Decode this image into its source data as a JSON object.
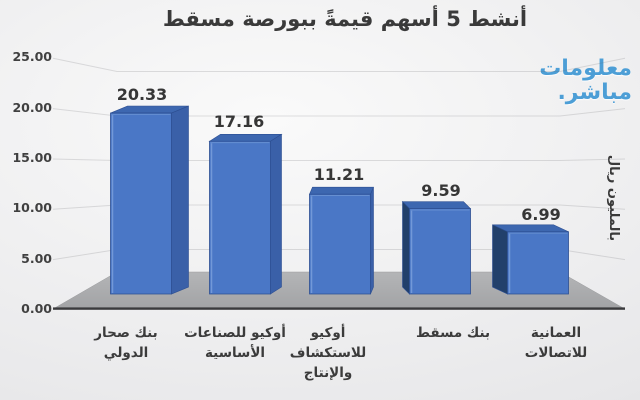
{
  "title": "أنشط 5 أسهم قيمةً ببورصة مسقط",
  "watermark": {
    "line1": "معلومات",
    "line2": "مباشر.",
    "color": "#4c9ed6"
  },
  "right_axis_title": "بالمليون ريال",
  "chart_data": {
    "type": "bar",
    "style": "3d-perspective",
    "title": "أنشط 5 أسهم قيمةً ببورصة مسقط",
    "unit_label": "بالمليون ريال",
    "categories": [
      "بنك صحار الدولي",
      "أوكيو للصناعات الأساسية",
      "أوكيو للاستكشاف والإنتاج",
      "بنك مسقط",
      "العمانية للاتصالات"
    ],
    "categories_lines": [
      [
        "بنك صحار",
        "الدولي"
      ],
      [
        "أوكيو للصناعات",
        "الأساسية"
      ],
      [
        "أوكيو",
        "للاستكشاف",
        "والإنتاج"
      ],
      [
        "بنك مسقط"
      ],
      [
        "العمانية",
        "للاتصالات"
      ]
    ],
    "values": [
      20.33,
      17.16,
      11.21,
      9.59,
      6.99
    ],
    "value_labels": [
      "20.33",
      "17.16",
      "11.21",
      "9.59",
      "6.99"
    ],
    "y_ticks": [
      "25.00",
      "20.00",
      "15.00",
      "10.00",
      "5.00",
      "0.00"
    ],
    "y_tick_values": [
      25,
      20,
      15,
      10,
      5,
      0
    ],
    "ylim": [
      0,
      25
    ],
    "grid": true,
    "legend": "none",
    "colors": {
      "bar_front": "#4a77c6",
      "bar_top": "#3d67b0",
      "bar_side_right": "#3a60a8",
      "bar_side_dark_left": "#22406b",
      "bar_outline": "#2d4f92",
      "bar_highlight": "#80a4de",
      "floor": "#a9aaac",
      "axis_line": "#3a3a3c",
      "label_text": "#3b3b3b"
    }
  }
}
